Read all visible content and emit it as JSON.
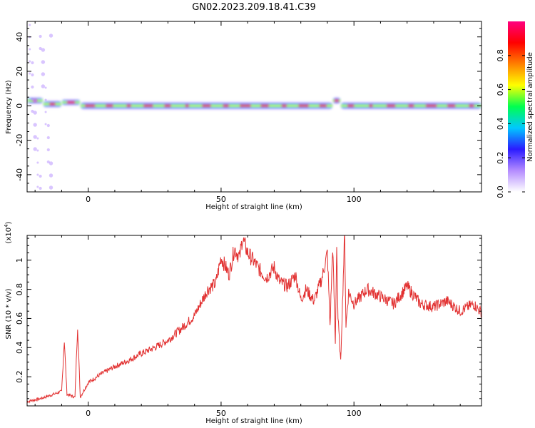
{
  "title": "GN02.2023.209.18.41.C39",
  "chart_data": [
    {
      "type": "heatmap",
      "xlabel": "Height of straight line (km)",
      "ylabel": "Frequency (Hz)",
      "xlim": [
        -23,
        148
      ],
      "ylim": [
        -50,
        49
      ],
      "xticks": [
        0,
        50,
        100
      ],
      "yticks": [
        -40,
        -20,
        0,
        20,
        40
      ],
      "colorbar": {
        "label": "Normalized spectral amplitude",
        "range": [
          0.0,
          1.0
        ],
        "ticks": [
          "0.0",
          "0.2",
          "0.4",
          "0.6",
          "0.8"
        ],
        "colormap": [
          "#ffffff",
          "#b48cff",
          "#2b1bff",
          "#00c8ff",
          "#00ff50",
          "#ffff00",
          "#ff8000",
          "#ff0000",
          "#ff0080"
        ]
      },
      "features": [
        {
          "x_range": [
            -23,
            -17
          ],
          "freq": 3,
          "amplitude": 0.6
        },
        {
          "x_range": [
            -17,
            -10
          ],
          "freq": 1,
          "amplitude": 0.7
        },
        {
          "x_range": [
            -10,
            -3
          ],
          "freq": 2,
          "amplitude": 0.5
        },
        {
          "x_range": [
            -3,
            92
          ],
          "freq": 0,
          "amplitude": 0.85
        },
        {
          "x_range": [
            92,
            95
          ],
          "freq": 3,
          "amplitude": 0.6
        },
        {
          "x_range": [
            95,
            148
          ],
          "freq": 0,
          "amplitude": 0.8
        }
      ]
    },
    {
      "type": "line",
      "xlabel": "Height of straight line (km)",
      "ylabel": "SNR (10 * v/v)",
      "yexponent": "(x10",
      "yexponent_power": "4",
      "yexponent_close": ")",
      "xlim": [
        -23,
        148
      ],
      "ylim": [
        0.0,
        1.17
      ],
      "xticks": [
        0,
        50,
        100
      ],
      "yticks": [
        0.2,
        0.4,
        0.6,
        0.8,
        1.0
      ],
      "series": [
        {
          "color": "#e23232",
          "x": [
            -23,
            -18,
            -13,
            -10,
            -9,
            -8,
            -5,
            -4,
            -3,
            0,
            5,
            10,
            15,
            20,
            25,
            30,
            35,
            40,
            45,
            48,
            50,
            53,
            55,
            57,
            58,
            60,
            62,
            65,
            67,
            70,
            72,
            75,
            78,
            80,
            82,
            85,
            88,
            90,
            91,
            92,
            93,
            93.5,
            94,
            95,
            96,
            96.5,
            97,
            98,
            100,
            105,
            110,
            115,
            120,
            125,
            130,
            135,
            140,
            145,
            148
          ],
          "y": [
            0.03,
            0.05,
            0.08,
            0.1,
            0.45,
            0.08,
            0.06,
            0.55,
            0.06,
            0.16,
            0.22,
            0.27,
            0.31,
            0.36,
            0.4,
            0.45,
            0.53,
            0.62,
            0.8,
            0.84,
            1.02,
            0.9,
            1.08,
            1.02,
            1.15,
            1.05,
            1.0,
            0.92,
            0.88,
            0.95,
            0.85,
            0.82,
            0.9,
            0.73,
            0.8,
            0.72,
            0.88,
            1.05,
            0.55,
            1.1,
            0.42,
            1.13,
            0.6,
            0.3,
            0.9,
            1.17,
            0.55,
            0.78,
            0.7,
            0.8,
            0.75,
            0.7,
            0.82,
            0.7,
            0.68,
            0.72,
            0.65,
            0.7,
            0.64
          ]
        }
      ]
    }
  ]
}
